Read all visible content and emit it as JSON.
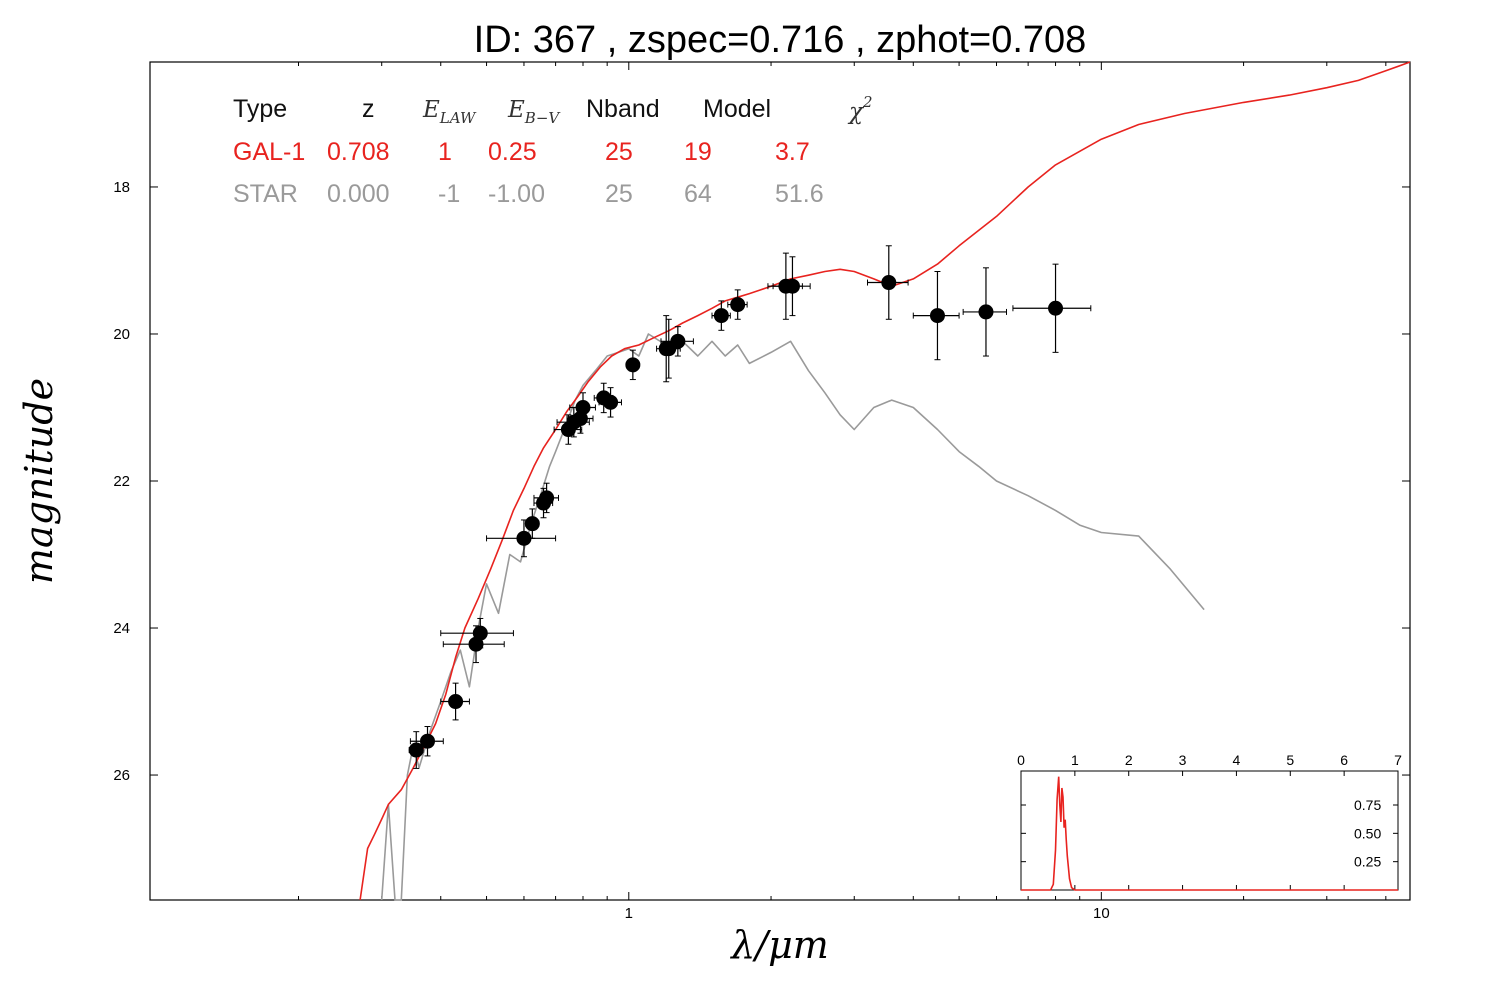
{
  "title": "ID:  367   , zspec=0.716 , zphot=0.708",
  "chart_data": {
    "type": "line",
    "title": "ID:  367   , zspec=0.716 , zphot=0.708",
    "xlabel": "λ/μm",
    "ylabel": "magnitude",
    "x_scale": "log",
    "xlim": [
      0.097,
      45
    ],
    "ylim": [
      27.7,
      16.3
    ],
    "y_inverted": true,
    "x_ticks": [
      1,
      10
    ],
    "x_tick_labels": [
      "1",
      "10"
    ],
    "y_ticks": [
      18,
      20,
      22,
      24,
      26
    ],
    "y_tick_labels": [
      "18",
      "20",
      "22",
      "24",
      "26"
    ],
    "grid": false,
    "legend": {
      "placement": "top-left",
      "headers": [
        "Type",
        "z",
        "E_LAW",
        "E_B−V",
        "Nband",
        "Model",
        "χ²"
      ],
      "header_math": {
        "elaw_main": "E",
        "elaw_sub": "LAW",
        "ebv_main": "E",
        "ebv_sub": "B−V",
        "chi_main": "χ",
        "chi_sup": "2"
      },
      "rows": [
        {
          "type": "GAL-1",
          "z": "0.708",
          "elaw": "1",
          "ebv": "0.25",
          "nband": "25",
          "model": "19",
          "chi2": "3.7",
          "color": "#e8231f"
        },
        {
          "type": "STAR",
          "z": "0.000",
          "elaw": "-1",
          "ebv": "-1.00",
          "nband": "25",
          "model": "64",
          "chi2": "51.6",
          "color": "#9a9a9a"
        }
      ]
    },
    "series": [
      {
        "name": "GAL-1",
        "color": "#e8231f",
        "x": [
          0.27,
          0.28,
          0.29,
          0.3,
          0.31,
          0.33,
          0.35,
          0.37,
          0.39,
          0.41,
          0.43,
          0.45,
          0.48,
          0.51,
          0.54,
          0.57,
          0.6,
          0.63,
          0.66,
          0.7,
          0.74,
          0.78,
          0.82,
          0.87,
          0.92,
          0.98,
          1.05,
          1.13,
          1.22,
          1.3,
          1.4,
          1.5,
          1.6,
          1.7,
          1.8,
          1.9,
          2.0,
          2.1,
          2.2,
          2.4,
          2.6,
          2.8,
          3.0,
          3.3,
          3.6,
          4.0,
          4.5,
          5.0,
          6.0,
          7.0,
          8.0,
          10.0,
          12.0,
          15.0,
          20.0,
          25.0,
          30.0,
          35.0,
          40.0,
          45.0
        ],
        "y": [
          27.7,
          27.0,
          26.8,
          26.6,
          26.4,
          26.2,
          25.9,
          25.6,
          25.3,
          24.9,
          24.4,
          24.0,
          23.6,
          23.2,
          22.8,
          22.4,
          22.1,
          21.8,
          21.55,
          21.3,
          21.05,
          20.85,
          20.65,
          20.45,
          20.3,
          20.2,
          20.15,
          20.05,
          19.95,
          19.85,
          19.75,
          19.65,
          19.55,
          19.5,
          19.45,
          19.4,
          19.35,
          19.3,
          19.25,
          19.2,
          19.15,
          19.12,
          19.15,
          19.25,
          19.35,
          19.25,
          19.05,
          18.8,
          18.4,
          18.0,
          17.7,
          17.35,
          17.15,
          17.0,
          16.85,
          16.75,
          16.65,
          16.55,
          16.42,
          16.3
        ]
      },
      {
        "name": "STAR",
        "color": "#9a9a9a",
        "x": [
          0.3,
          0.31,
          0.32,
          0.33,
          0.34,
          0.35,
          0.36,
          0.38,
          0.4,
          0.42,
          0.44,
          0.46,
          0.48,
          0.5,
          0.53,
          0.56,
          0.59,
          0.62,
          0.65,
          0.68,
          0.7,
          0.73,
          0.77,
          0.8,
          0.85,
          0.9,
          0.95,
          1.0,
          1.05,
          1.1,
          1.2,
          1.3,
          1.4,
          1.5,
          1.6,
          1.7,
          1.8,
          2.0,
          2.2,
          2.4,
          2.6,
          2.8,
          3.0,
          3.3,
          3.6,
          4.0,
          4.5,
          5.0,
          5.5,
          6.0,
          7.0,
          8.0,
          9.0,
          10.0,
          12.0,
          14.0,
          16.5
        ],
        "y": [
          27.7,
          26.4,
          27.7,
          27.7,
          26.0,
          25.6,
          25.9,
          25.4,
          25.0,
          24.6,
          24.3,
          24.8,
          24.0,
          23.4,
          23.8,
          23.0,
          23.1,
          22.6,
          22.2,
          21.8,
          21.6,
          21.3,
          20.9,
          20.7,
          20.5,
          20.3,
          20.25,
          20.2,
          20.3,
          20.0,
          20.15,
          20.1,
          20.3,
          20.1,
          20.3,
          20.15,
          20.4,
          20.25,
          20.1,
          20.5,
          20.8,
          21.1,
          21.3,
          21.0,
          20.9,
          21.0,
          21.3,
          21.6,
          21.8,
          22.0,
          22.2,
          22.4,
          22.6,
          22.7,
          22.75,
          23.2,
          23.75
        ]
      }
    ],
    "points": [
      {
        "x": 0.355,
        "y": 25.66,
        "xerr": 0.012,
        "yerr": 0.25
      },
      {
        "x": 0.375,
        "y": 25.54,
        "xerr": 0.03,
        "yerr": 0.2
      },
      {
        "x": 0.43,
        "y": 25.0,
        "xerr": 0.03,
        "yerr": 0.25
      },
      {
        "x": 0.475,
        "y": 24.22,
        "xerr": 0.07,
        "yerr": 0.25
      },
      {
        "x": 0.485,
        "y": 24.07,
        "xerr": 0.085,
        "yerr": 0.2
      },
      {
        "x": 0.6,
        "y": 22.78,
        "xerr": 0.1,
        "yerr": 0.25
      },
      {
        "x": 0.625,
        "y": 22.58,
        "xerr": 0.02,
        "yerr": 0.2
      },
      {
        "x": 0.66,
        "y": 22.3,
        "xerr": 0.03,
        "yerr": 0.2
      },
      {
        "x": 0.67,
        "y": 22.23,
        "xerr": 0.04,
        "yerr": 0.2
      },
      {
        "x": 0.745,
        "y": 21.3,
        "xerr": 0.05,
        "yerr": 0.2
      },
      {
        "x": 0.765,
        "y": 21.2,
        "xerr": 0.06,
        "yerr": 0.2
      },
      {
        "x": 0.79,
        "y": 21.15,
        "xerr": 0.05,
        "yerr": 0.2
      },
      {
        "x": 0.8,
        "y": 21.0,
        "xerr": 0.05,
        "yerr": 0.2
      },
      {
        "x": 0.885,
        "y": 20.87,
        "xerr": 0.04,
        "yerr": 0.2
      },
      {
        "x": 0.915,
        "y": 20.93,
        "xerr": 0.05,
        "yerr": 0.2
      },
      {
        "x": 1.02,
        "y": 20.42,
        "xerr": 0.03,
        "yerr": 0.2
      },
      {
        "x": 1.2,
        "y": 20.2,
        "xerr": 0.02,
        "yerr": 0.45
      },
      {
        "x": 1.215,
        "y": 20.2,
        "xerr": 0.07,
        "yerr": 0.4
      },
      {
        "x": 1.27,
        "y": 20.1,
        "xerr": 0.1,
        "yerr": 0.2
      },
      {
        "x": 1.57,
        "y": 19.75,
        "xerr": 0.07,
        "yerr": 0.2
      },
      {
        "x": 1.7,
        "y": 19.6,
        "xerr": 0.08,
        "yerr": 0.2
      },
      {
        "x": 2.15,
        "y": 19.35,
        "xerr": 0.18,
        "yerr": 0.45
      },
      {
        "x": 2.22,
        "y": 19.35,
        "xerr": 0.2,
        "yerr": 0.4
      },
      {
        "x": 3.55,
        "y": 19.3,
        "xerr": 0.35,
        "yerr": 0.5
      },
      {
        "x": 4.5,
        "y": 19.75,
        "xerr": 0.5,
        "yerr": 0.6
      },
      {
        "x": 5.7,
        "y": 19.7,
        "xerr": 0.6,
        "yerr": 0.6
      },
      {
        "x": 8.0,
        "y": 19.65,
        "xerr": 1.5,
        "yerr": 0.6
      }
    ],
    "inset": {
      "type": "line",
      "xlim": [
        0,
        7
      ],
      "ylim": [
        0,
        1.05
      ],
      "x_ticks": [
        0,
        1,
        2,
        3,
        4,
        5,
        6,
        7
      ],
      "x_tick_labels": [
        "0",
        "1",
        "2",
        "3",
        "4",
        "5",
        "6",
        "7"
      ],
      "y_ticks": [
        0.25,
        0.5,
        0.75
      ],
      "y_tick_labels": [
        "0.25",
        "0.50",
        "0.75"
      ],
      "series": [
        {
          "color": "#e8231f",
          "x": [
            0.0,
            0.55,
            0.6,
            0.64,
            0.67,
            0.7,
            0.72,
            0.74,
            0.76,
            0.78,
            0.8,
            0.82,
            0.84,
            0.86,
            0.88,
            0.9,
            0.94,
            1.0,
            7.0
          ],
          "y": [
            0.0,
            0.0,
            0.05,
            0.35,
            0.8,
            1.0,
            0.75,
            0.6,
            0.9,
            0.82,
            0.55,
            0.62,
            0.45,
            0.3,
            0.2,
            0.1,
            0.02,
            0.0,
            0.0
          ]
        }
      ]
    }
  }
}
